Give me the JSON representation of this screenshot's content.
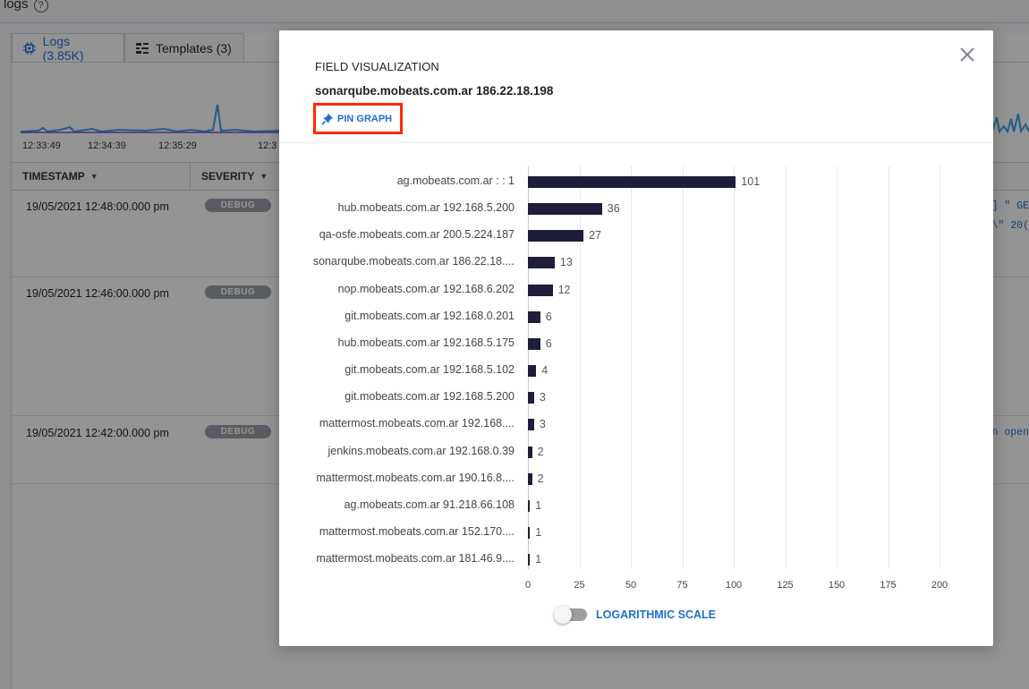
{
  "app": {
    "page_title": "logs",
    "help_icon": "?",
    "tabs": [
      {
        "label": "Logs (3.85K)",
        "icon": "chip-icon"
      },
      {
        "label": "Templates (3)",
        "icon": "list-icon"
      }
    ],
    "spark_times": [
      "12:33:49",
      "12:34:39",
      "12:35:29",
      "12:3"
    ],
    "columns": [
      {
        "label": "TIMESTAMP"
      },
      {
        "label": "SEVERITY"
      }
    ],
    "rows": [
      {
        "timestamp": "19/05/2021 12:48:00.000 pm",
        "severity": "DEBUG",
        "snippet_1": "] \" GE",
        "snippet_2": "\\\" 20("
      },
      {
        "timestamp": "19/05/2021 12:46:00.000 pm",
        "severity": "DEBUG",
        "snippet_1": "",
        "snippet_2": ""
      },
      {
        "timestamp": "19/05/2021 12:42:00.000 pm",
        "severity": "DEBUG",
        "snippet_1": "n open",
        "snippet_2": ""
      }
    ]
  },
  "modal": {
    "label": "FIELD VISUALIZATION",
    "subtitle": "sonarqube.mobeats.com.ar 186.22.18.198",
    "pin_label": "PIN GRAPH",
    "toggle_label": "LOGARITHMIC SCALE",
    "log_scale_enabled": false
  },
  "chart_data": {
    "type": "bar",
    "orientation": "horizontal",
    "categories": [
      "ag.mobeats.com.ar : : 1",
      "hub.mobeats.com.ar 192.168.5.200",
      "qa-osfe.mobeats.com.ar 200.5.224.187",
      "sonarqube.mobeats.com.ar 186.22.18....",
      "nop.mobeats.com.ar 192.168.6.202",
      "git.mobeats.com.ar 192.168.0.201",
      "hub.mobeats.com.ar 192.168.5.175",
      "git.mobeats.com.ar 192.168.5.102",
      "git.mobeats.com.ar 192.168.5.200",
      "mattermost.mobeats.com.ar 192.168....",
      "jenkins.mobeats.com.ar 192.168.0.39",
      "mattermost.mobeats.com.ar 190.16.8....",
      "ag.mobeats.com.ar 91.218.66.108",
      "mattermost.mobeats.com.ar 152.170....",
      "mattermost.mobeats.com.ar 181.46.9...."
    ],
    "values": [
      101,
      36,
      27,
      13,
      12,
      6,
      6,
      4,
      3,
      3,
      2,
      2,
      1,
      1,
      1
    ],
    "xlim": [
      0,
      200
    ],
    "xticks": [
      "0",
      "25",
      "50",
      "75",
      "100",
      "125",
      "150",
      "175",
      "200"
    ],
    "grid": true,
    "bar_color": "#1e1d3b"
  }
}
